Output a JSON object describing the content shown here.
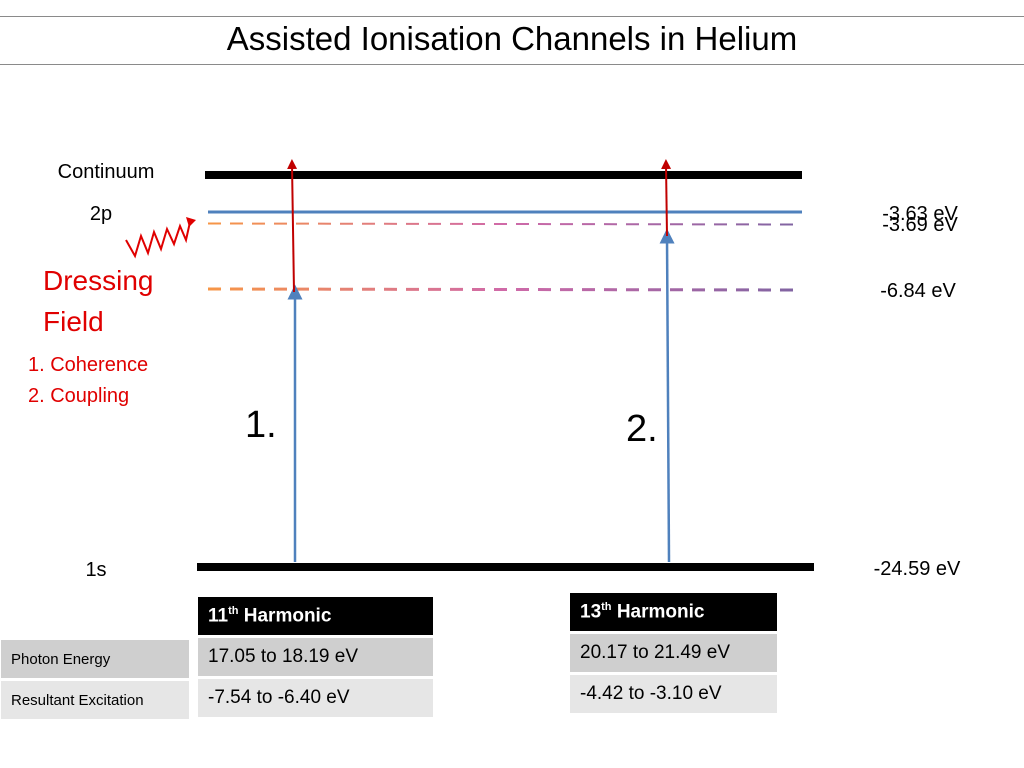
{
  "title": "Assisted Ionisation Channels in Helium",
  "levels": {
    "continuum": "Continuum",
    "p2": "2p",
    "s1": "1s"
  },
  "energies": {
    "e1": "-3.63 eV",
    "e2": "-3.69 eV",
    "e3": "-6.84 eV",
    "e4": "-24.59 eV"
  },
  "dressing": {
    "line1": "Dressing",
    "line2": "Field",
    "item1": "1. Coherence",
    "item2": "2. Coupling"
  },
  "channels": {
    "c1": "1.",
    "c2": "2."
  },
  "row_labels": {
    "photon_energy": "Photon Energy",
    "resultant_excitation": "Resultant Excitation"
  },
  "harmonics": [
    {
      "number": "11",
      "suffix": "th",
      "label": "Harmonic",
      "photon_energy": "17.05 to 18.19 eV",
      "resultant_excitation": "-7.54 to -6.40 eV"
    },
    {
      "number": "13",
      "suffix": "th",
      "label": "Harmonic",
      "photon_energy": "20.17 to 21.49 eV",
      "resultant_excitation": "-4.42 to -3.10 eV"
    }
  ],
  "colors": {
    "level_line": "#000000",
    "p2_line": "#4f81bd",
    "excitation_arrow": "#4f81bd",
    "ionisation_arrow": "#c00000",
    "dressing_text": "#e00000",
    "dashed_start": "#f79646",
    "dashed_mid": "#d06aa8",
    "dashed_end": "#8064a2"
  }
}
